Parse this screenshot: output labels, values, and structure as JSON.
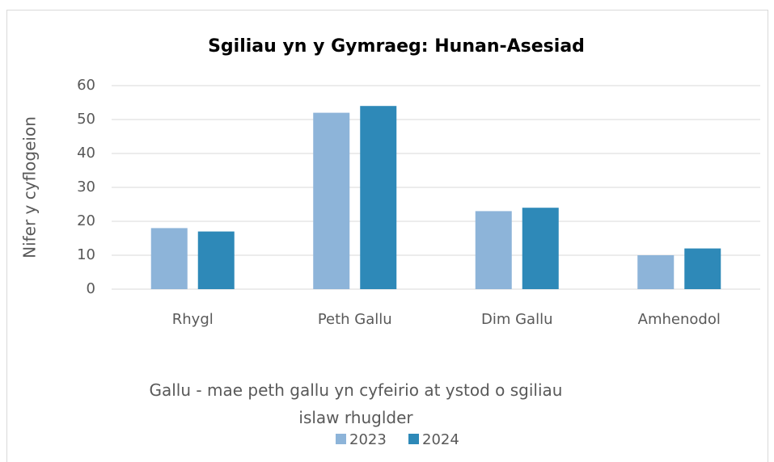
{
  "chart_data": {
    "type": "bar",
    "title": "Sgiliau yn y Gymraeg: Hunan-Asesiad",
    "ylabel": "Nifer y cyflogeion",
    "xlabel": "Gallu - mae peth gallu yn cyfeirio at ystod o sgiliau islaw rhuglder",
    "categories": [
      "Rhygl",
      "Peth Gallu",
      "Dim Gallu",
      "Amhenodol"
    ],
    "series": [
      {
        "name": "2023",
        "color": "#8db4d9",
        "values": [
          18,
          52,
          23,
          10
        ]
      },
      {
        "name": "2024",
        "color": "#2e89b8",
        "values": [
          17,
          54,
          24,
          12
        ]
      }
    ],
    "ylim": [
      0,
      60
    ],
    "yticks": [
      0,
      10,
      20,
      30,
      40,
      50,
      60
    ],
    "grid": true,
    "legend": "bottom"
  }
}
